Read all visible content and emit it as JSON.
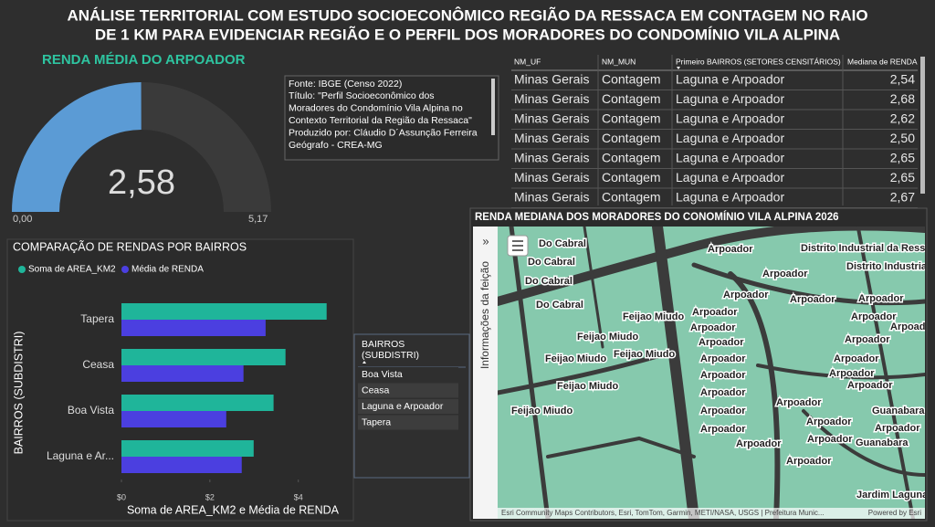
{
  "header": {
    "title_lines": [
      "ANÁLISE TERRITORIAL COM ESTUDO SOCIOECONÔMICO REGIÃO DA RESSACA EM CONTAGEM NO RAIO",
      "DE  1 KM PARA EVIDENCIAR REGIÃO E O PERFIL DOS MORADORES DO CONDOMÍNIO VILA ALPINA"
    ]
  },
  "gauge": {
    "title": "RENDA MÉDIA DO ARPOADOR",
    "value": 2.58,
    "value_label": "2,58",
    "min": 0,
    "min_label": "0,00",
    "max": 5.17,
    "max_label": "5,17",
    "color": "#5b9bd5"
  },
  "info_box": {
    "lines": [
      "Fonte: IBGE (Censo 2022)",
      "Título: \"Perfil Socioeconômico dos",
      "Moradores do Condomínio Vila Alpina no",
      "Contexto Territorial da Região da Ressaca\"",
      "Produzido por: Cláudio D´Assunção Ferreira",
      "Geógrafo - CREA-MG"
    ]
  },
  "table": {
    "columns": [
      "NM_UF",
      "NM_MUN",
      "Primeiro BAIRROS (SETORES CENSITÁRIOS)",
      "Mediana de RENDA"
    ],
    "rows": [
      [
        "Minas Gerais",
        "Contagem",
        "Laguna e Arpoador",
        "2,54"
      ],
      [
        "Minas Gerais",
        "Contagem",
        "Laguna e Arpoador",
        "2,68"
      ],
      [
        "Minas Gerais",
        "Contagem",
        "Laguna e Arpoador",
        "2,62"
      ],
      [
        "Minas Gerais",
        "Contagem",
        "Laguna e Arpoador",
        "2,50"
      ],
      [
        "Minas Gerais",
        "Contagem",
        "Laguna e Arpoador",
        "2,65"
      ],
      [
        "Minas Gerais",
        "Contagem",
        "Laguna e Arpoador",
        "2,65"
      ],
      [
        "Minas Gerais",
        "Contagem",
        "Laguna e Arpoador",
        "2,67"
      ]
    ]
  },
  "map": {
    "title": "RENDA MEDIANA DOS MORADORES DO CONOMÍNIO VILA ALPINA 2026",
    "panel_label": "Informações da feição",
    "labels": [
      "Do Cabral",
      "Do Cabral",
      "Do Cabral",
      "Do Cabral",
      "Arpoador",
      "Arpoador",
      "Distrito Industrial da Ress",
      "Distrito Industrial",
      "Arpoador",
      "Arpoador",
      "Arpoador",
      "Arpoador",
      "Arpoador",
      "Feijao Miudo",
      "Arpoador",
      "Arpoador",
      "Feijao Miudo",
      "Arpoador",
      "Arpoador",
      "Feijao Miudo",
      "Feijao Miudo",
      "Arpoador",
      "Arpoador",
      "Arpoador",
      "Arpoador",
      "Feijao Miudo",
      "Arpoador",
      "Arpoador",
      "Arpoador",
      "Arpoador",
      "Feijao Miudo",
      "Guanabara",
      "Arpoador",
      "Arpoador",
      "Arpoador",
      "Arpoador",
      "Arpoador",
      "Guanabara",
      "Arpoador",
      "Jardim Laguna"
    ],
    "attribution": "Esri Community Maps Contributors, Esri, TomTom, Garmin, METI/NASA, USGS | Prefeitura Munic...",
    "powered_by": "Powered by Esri"
  },
  "chart_data": {
    "type": "bar",
    "orientation": "horizontal",
    "title": "COMPARAÇÃO DE RENDAS POR BAIRROS",
    "categories": [
      "Tapera",
      "Ceasa",
      "Boa Vista",
      "Laguna e Ar..."
    ],
    "series": [
      {
        "name": "Soma de AREA_KM2",
        "color": "#1fb59a",
        "values": [
          4.64,
          3.71,
          3.44,
          2.99
        ]
      },
      {
        "name": "Média de RENDA",
        "color": "#4b3fe0",
        "values": [
          3.26,
          2.76,
          2.37,
          2.72
        ]
      }
    ],
    "xlim": [
      0,
      5.1
    ],
    "xticks": [
      {
        "value": 0,
        "label": "$0"
      },
      {
        "value": 2,
        "label": "$2"
      },
      {
        "value": 4,
        "label": "$4"
      }
    ],
    "x_label": "Soma de AREA_KM2 e Média de RENDA",
    "y_label": "BAIRROS (SUBDISTRI)"
  },
  "slicer": {
    "title": "BAIRROS (SUBDISTRI)",
    "items": [
      "Boa Vista",
      "Ceasa",
      "Laguna e Arpoador",
      "Tapera"
    ]
  }
}
